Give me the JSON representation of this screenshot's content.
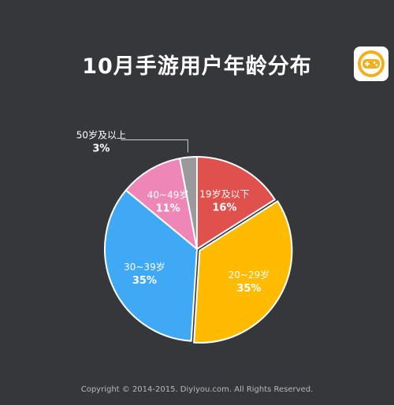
{
  "title": "10月手游用户年龄分布",
  "footer": "Copyright © 2014-2015. Diyiyou.com. All Rights Reserved.",
  "logo_icon": "gamepad-icon",
  "colors": {
    "background": "#36373b",
    "label_dark": "#ffffff"
  },
  "chart_data": {
    "type": "pie",
    "categories": [
      "19岁及以下",
      "20~29岁",
      "30~39岁",
      "40~49岁",
      "50岁及以上"
    ],
    "values": [
      16,
      35,
      35,
      11,
      3
    ],
    "value_labels": [
      "16%",
      "35%",
      "35%",
      "11%",
      "3%"
    ],
    "colors": [
      "#e0504d",
      "#ffbb00",
      "#3fa9f5",
      "#ee86b8",
      "#9a9a9a"
    ],
    "label_colors": [
      "#ffffff",
      "#ffffff",
      "#ffffff",
      "#ffffff",
      "#ffffff"
    ],
    "highlight": "20~29岁",
    "start_angle": "12 o'clock, clockwise",
    "legend": "none"
  }
}
